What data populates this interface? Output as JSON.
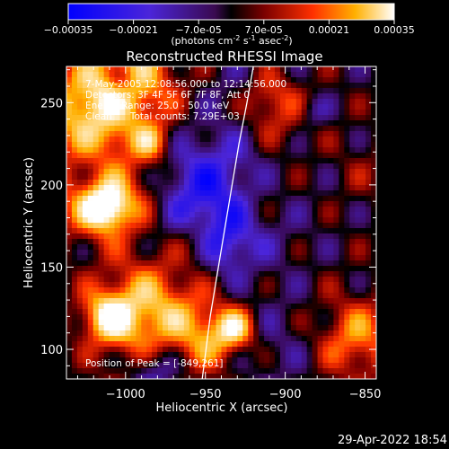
{
  "colorbar": {
    "ticks": [
      "-0.00035",
      "-0.00021",
      "-7.0e-05",
      "7.0e-05",
      "0.00021",
      "0.00035"
    ],
    "unit_label": "(photons cm",
    "unit_sup1": "-2",
    "unit_mid": " s",
    "unit_sup2": "-1",
    "unit_mid2": " asec",
    "unit_sup3": "-2",
    "unit_end": ")"
  },
  "chart_data": {
    "type": "heatmap",
    "title": "Reconstructed RHESSI Image",
    "xlabel": "Heliocentric X (arcsec)",
    "ylabel": "Heliocentric Y (arcsec)",
    "xlim": [
      -1037,
      -843
    ],
    "ylim": [
      82,
      272
    ],
    "x_ticks": [
      -1000,
      -950,
      -900,
      -850
    ],
    "x_tick_labels": [
      "−1000",
      "−950",
      "−900",
      "−850"
    ],
    "y_ticks": [
      100,
      150,
      200,
      250
    ],
    "y_tick_labels": [
      "100",
      "150",
      "200",
      "250"
    ],
    "color_range": [
      -0.00035,
      0.00035
    ],
    "limb_curve": [
      [
        -952,
        82
      ],
      [
        -947,
        120
      ],
      [
        -941,
        155
      ],
      [
        -935,
        190
      ],
      [
        -929,
        225
      ],
      [
        -924,
        250
      ],
      [
        -920,
        272
      ]
    ],
    "annotations": [
      "7-May-2005 12:08:56.000 to 12:14:56.000",
      "Detectors: 3F 4F 5F 6F 7F 8F, Att 0",
      "Energy Range: 25.0 - 50.0 keV",
      "Clean      Total counts: 7.29E+03",
      "Position of Peak = [-849,261]"
    ]
  },
  "footer": {
    "timestamp": "29-Apr-2022 18:54"
  }
}
